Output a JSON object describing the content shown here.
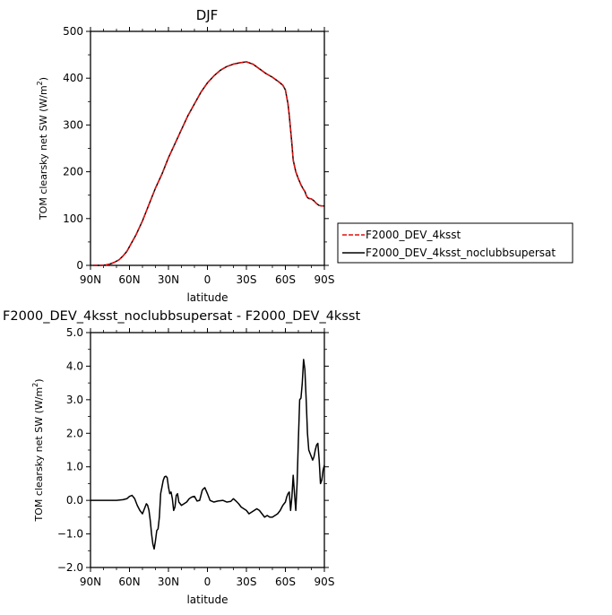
{
  "chart_data": [
    {
      "type": "line",
      "title": "DJF",
      "xlabel": "latitude",
      "ylabel": "TOM clearsky net SW (W/m²)",
      "ylabel_main": "TOM clearsky net SW (W/m",
      "ylabel_sup": "2",
      "ylabel_end": ")",
      "xlim": [
        90,
        -90
      ],
      "ylim": [
        0,
        500
      ],
      "x_ticks": [
        90,
        60,
        30,
        0,
        -30,
        -60,
        -90
      ],
      "x_tick_labels": [
        "90N",
        "60N",
        "30N",
        "0",
        "30S",
        "60S",
        "90S"
      ],
      "y_ticks": [
        0,
        100,
        200,
        300,
        400,
        500
      ],
      "y_tick_labels": [
        "0",
        "100",
        "200",
        "300",
        "400",
        "500"
      ],
      "legend": {
        "placement": "right",
        "entries": [
          "F2000_DEV_4ksst",
          "F2000_DEV_4ksst_noclubbsupersat"
        ]
      },
      "series": [
        {
          "name": "F2000_DEV_4ksst",
          "color": "#e01010",
          "dash": true,
          "x": [
            88,
            82,
            78,
            75,
            72,
            68,
            65,
            62,
            60,
            58,
            55,
            50,
            45,
            40,
            35,
            30,
            25,
            20,
            15,
            10,
            5,
            0,
            -5,
            -10,
            -15,
            -20,
            -25,
            -30,
            -35,
            -40,
            -45,
            -50,
            -55,
            -58,
            -60,
            -62,
            -63,
            -64,
            -65,
            -66,
            -68,
            -70,
            -72,
            -74,
            -75,
            -76,
            -77,
            -78,
            -80,
            -82,
            -84,
            -86,
            -88,
            -90
          ],
          "y": [
            0,
            0,
            1,
            3,
            6,
            12,
            20,
            30,
            40,
            50,
            65,
            95,
            130,
            165,
            195,
            230,
            260,
            290,
            320,
            345,
            370,
            390,
            405,
            417,
            425,
            430,
            433,
            435,
            430,
            420,
            410,
            402,
            392,
            385,
            375,
            345,
            320,
            290,
            260,
            225,
            200,
            185,
            172,
            162,
            158,
            150,
            145,
            143,
            142,
            138,
            132,
            128,
            127,
            127
          ]
        },
        {
          "name": "F2000_DEV_4ksst_noclubbsupersat",
          "color": "#000000",
          "dash": false,
          "x": [
            88,
            82,
            78,
            75,
            72,
            68,
            65,
            62,
            60,
            58,
            55,
            50,
            45,
            40,
            35,
            30,
            25,
            20,
            15,
            10,
            5,
            0,
            -5,
            -10,
            -15,
            -20,
            -25,
            -30,
            -35,
            -40,
            -45,
            -50,
            -55,
            -58,
            -60,
            -62,
            -63,
            -64,
            -65,
            -66,
            -68,
            -70,
            -72,
            -74,
            -75,
            -76,
            -77,
            -78,
            -80,
            -82,
            -84,
            -86,
            -88,
            -90
          ],
          "y": [
            0,
            0,
            1,
            3,
            6,
            12,
            20,
            30,
            40,
            50,
            65,
            95,
            130,
            165,
            195,
            230,
            260,
            290,
            320,
            345,
            370,
            390,
            405,
            417,
            425,
            430,
            433,
            435,
            430,
            420,
            410,
            402,
            392,
            385,
            375,
            345,
            320,
            290,
            260,
            225,
            200,
            185,
            172,
            162,
            158,
            150,
            145,
            143,
            142,
            138,
            132,
            128,
            127,
            127
          ]
        }
      ]
    },
    {
      "type": "line",
      "title": "F2000_DEV_4ksst_noclubbsupersat - F2000_DEV_4ksst",
      "xlabel": "latitude",
      "ylabel": "TOM clearsky net SW (W/m²)",
      "ylabel_main": "TOM clearsky net SW (W/m",
      "ylabel_sup": "2",
      "ylabel_end": ")",
      "xlim": [
        90,
        -90
      ],
      "ylim": [
        -2,
        5
      ],
      "x_ticks": [
        90,
        60,
        30,
        0,
        -30,
        -60,
        -90
      ],
      "x_tick_labels": [
        "90N",
        "60N",
        "30N",
        "0",
        "30S",
        "60S",
        "90S"
      ],
      "y_ticks": [
        -2,
        -1,
        0,
        1,
        2,
        3,
        4,
        5
      ],
      "y_tick_labels": [
        "−2.0",
        "−1.0",
        "0.0",
        "1.0",
        "2.0",
        "3.0",
        "4.0",
        "5.0"
      ],
      "series": [
        {
          "name": "",
          "color": "#000000",
          "dash": false,
          "x": [
            90,
            85,
            80,
            75,
            70,
            65,
            62,
            60,
            58,
            56,
            54,
            52,
            50,
            48,
            47,
            46,
            45,
            44,
            43,
            42,
            41,
            40,
            39,
            38,
            37,
            36,
            35,
            34,
            33,
            32,
            31,
            30,
            29,
            28,
            27,
            26,
            25,
            24,
            23,
            22,
            20,
            18,
            16,
            14,
            12,
            10,
            8,
            6,
            5,
            4,
            3,
            2,
            0,
            -2,
            -5,
            -8,
            -12,
            -15,
            -18,
            -20,
            -22,
            -24,
            -26,
            -28,
            -30,
            -32,
            -34,
            -36,
            -38,
            -40,
            -42,
            -44,
            -46,
            -48,
            -50,
            -52,
            -54,
            -56,
            -58,
            -60,
            -61,
            -62,
            -63,
            -64,
            -65,
            -66,
            -67,
            -68,
            -69,
            -70,
            -71,
            -72,
            -73,
            -74,
            -75,
            -76,
            -77,
            -78,
            -79,
            -80,
            -81,
            -82,
            -83,
            -84,
            -85,
            -86,
            -87,
            -88,
            -89,
            -90
          ],
          "y": [
            0.0,
            0.0,
            0.0,
            0.0,
            0.0,
            0.02,
            0.05,
            0.12,
            0.15,
            0.05,
            -0.15,
            -0.3,
            -0.4,
            -0.2,
            -0.1,
            -0.15,
            -0.3,
            -0.6,
            -1.0,
            -1.3,
            -1.45,
            -1.2,
            -0.9,
            -0.85,
            -0.5,
            0.2,
            0.4,
            0.6,
            0.7,
            0.72,
            0.68,
            0.4,
            0.2,
            0.25,
            0.05,
            -0.3,
            -0.2,
            0.15,
            0.2,
            -0.05,
            -0.15,
            -0.1,
            -0.05,
            0.05,
            0.1,
            0.12,
            -0.02,
            0.0,
            0.15,
            0.3,
            0.35,
            0.38,
            0.2,
            0.0,
            -0.05,
            -0.02,
            0.0,
            -0.05,
            -0.03,
            0.05,
            -0.02,
            -0.1,
            -0.2,
            -0.25,
            -0.3,
            -0.4,
            -0.35,
            -0.3,
            -0.25,
            -0.3,
            -0.4,
            -0.5,
            -0.45,
            -0.5,
            -0.5,
            -0.45,
            -0.4,
            -0.3,
            -0.15,
            -0.05,
            0.1,
            0.2,
            0.25,
            -0.3,
            0.1,
            0.75,
            0.2,
            -0.3,
            0.5,
            1.8,
            3.0,
            3.05,
            3.5,
            4.2,
            3.9,
            3.0,
            2.0,
            1.5,
            1.4,
            1.3,
            1.2,
            1.3,
            1.5,
            1.65,
            1.7,
            1.2,
            0.5,
            0.6,
            0.9,
            1.05
          ]
        }
      ]
    }
  ]
}
